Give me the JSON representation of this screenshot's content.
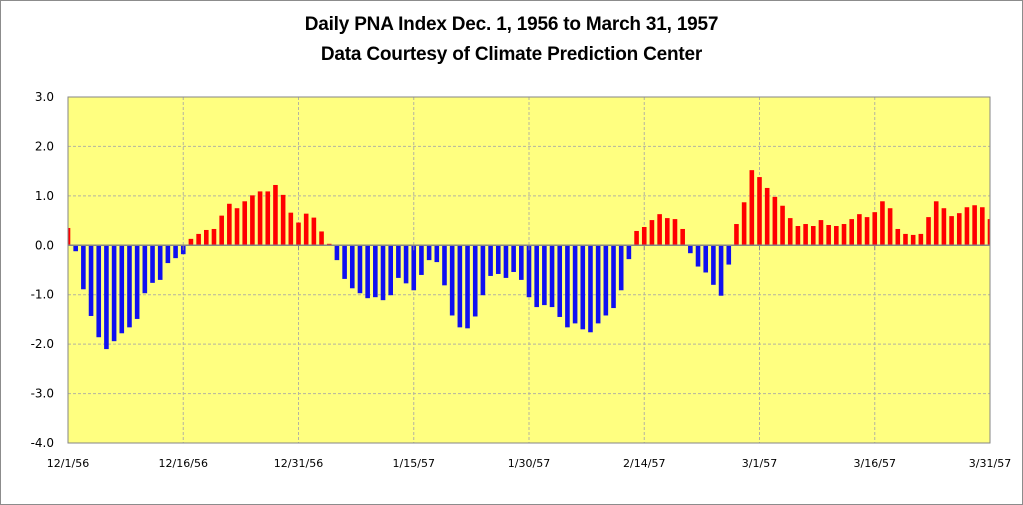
{
  "chart_data": {
    "type": "bar",
    "title": "Daily PNA Index Dec. 1, 1956 to March 31, 1957",
    "subtitle": "Data Courtesy of Climate Prediction Center",
    "xlabel": "",
    "ylabel": "",
    "ylim": [
      -4.0,
      3.0
    ],
    "y_ticks": [
      "3.0",
      "2.0",
      "1.0",
      "0.0",
      "-1.0",
      "-2.0",
      "-3.0",
      "-4.0"
    ],
    "y_tick_values": [
      3,
      2,
      1,
      0,
      -1,
      -2,
      -3,
      -4
    ],
    "x_start": "12/1/56",
    "x_end": "3/31/57",
    "x_ticks": [
      "12/1/56",
      "12/16/56",
      "12/31/56",
      "1/15/57",
      "1/30/57",
      "2/14/57",
      "3/1/57",
      "3/16/57",
      "3/31/57"
    ],
    "x_tick_interval_days": 15,
    "grid": true,
    "legend": "none",
    "colors": {
      "positive": "#FF0000",
      "negative": "#1010F0",
      "plot_background": "#FFFF80",
      "gridline": "#B4B4A0",
      "axis": "#868686"
    },
    "values": [
      0.35,
      -0.12,
      -0.89,
      -1.43,
      -1.86,
      -2.1,
      -1.94,
      -1.78,
      -1.66,
      -1.49,
      -0.97,
      -0.76,
      -0.7,
      -0.36,
      -0.26,
      -0.18,
      0.13,
      0.23,
      0.31,
      0.33,
      0.6,
      0.84,
      0.75,
      0.89,
      1.01,
      1.09,
      1.09,
      1.22,
      1.02,
      0.66,
      0.46,
      0.64,
      0.56,
      0.28,
      0.03,
      -0.3,
      -0.68,
      -0.87,
      -0.97,
      -1.07,
      -1.05,
      -1.11,
      -1.01,
      -0.66,
      -0.77,
      -0.91,
      -0.6,
      -0.3,
      -0.34,
      -0.81,
      -1.42,
      -1.66,
      -1.68,
      -1.44,
      -1.01,
      -0.62,
      -0.58,
      -0.66,
      -0.54,
      -0.7,
      -1.05,
      -1.25,
      -1.21,
      -1.25,
      -1.45,
      -1.66,
      -1.58,
      -1.7,
      -1.76,
      -1.58,
      -1.42,
      -1.27,
      -0.91,
      -0.28,
      0.29,
      0.37,
      0.51,
      0.63,
      0.55,
      0.53,
      0.33,
      -0.16,
      -0.43,
      -0.55,
      -0.8,
      -1.02,
      -0.39,
      0.43,
      0.87,
      1.52,
      1.38,
      1.16,
      0.98,
      0.8,
      0.55,
      0.39,
      0.43,
      0.39,
      0.51,
      0.41,
      0.39,
      0.43,
      0.53,
      0.63,
      0.57,
      0.67,
      0.89,
      0.75,
      0.33,
      0.23,
      0.21,
      0.23,
      0.57,
      0.89,
      0.75,
      0.59,
      0.65,
      0.77,
      0.81,
      0.77,
      0.53
    ]
  }
}
